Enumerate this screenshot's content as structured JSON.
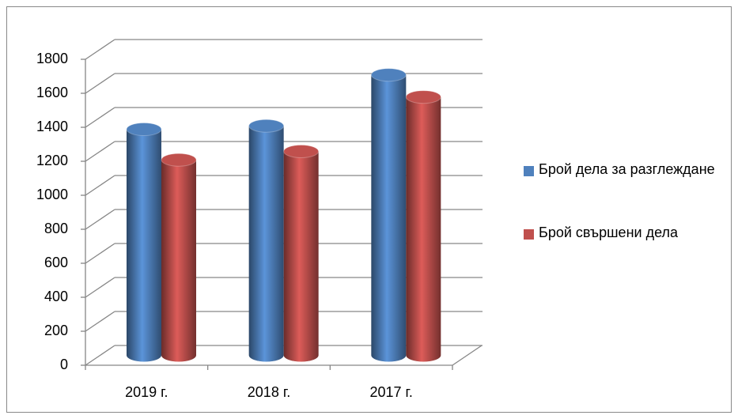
{
  "chart_data": {
    "type": "bar3d",
    "categories": [
      "2019 г.",
      "2018 г.",
      "2017 г."
    ],
    "series": [
      {
        "name": "Брой дела за разглеждане",
        "color": "#4f81bd",
        "values": [
          1330,
          1350,
          1650
        ]
      },
      {
        "name": "Брой свършени дела",
        "color": "#c0504d",
        "values": [
          1150,
          1200,
          1520
        ]
      }
    ],
    "ylim": [
      0,
      1800
    ],
    "yticks": [
      0,
      200,
      400,
      600,
      800,
      1000,
      1200,
      1400,
      1600,
      1800
    ],
    "grid": true,
    "legend": "right"
  }
}
